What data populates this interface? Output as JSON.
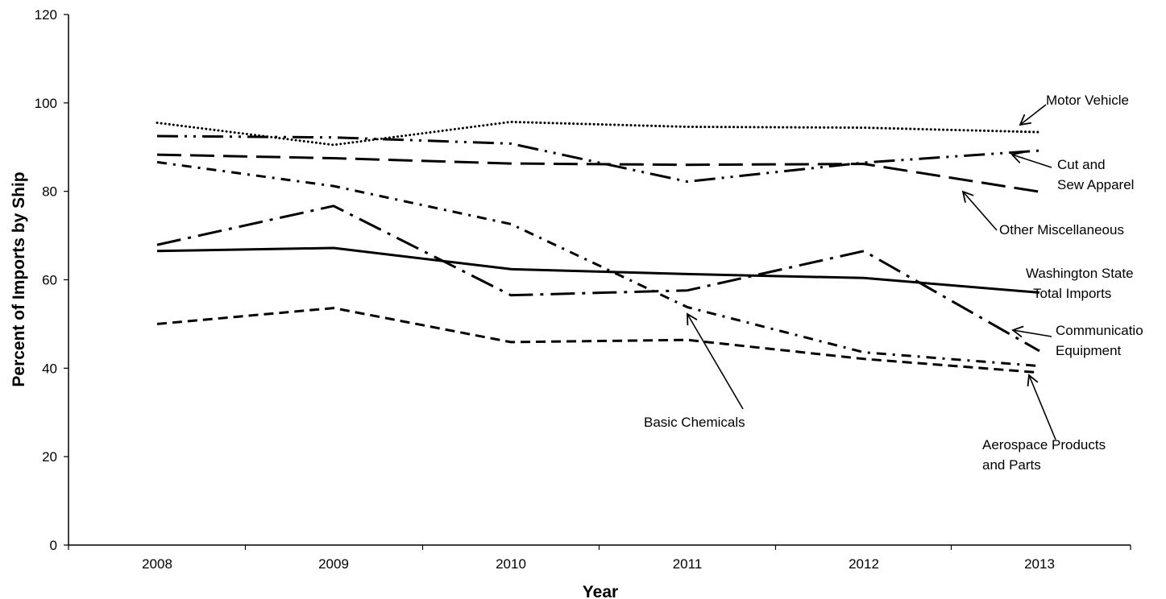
{
  "chart_data": {
    "type": "line",
    "xlabel": "Year",
    "ylabel": "Percent of Imports by Ship",
    "ylim": [
      0,
      120
    ],
    "yticks": [
      "0",
      "20",
      "40",
      "60",
      "80",
      "100",
      "120"
    ],
    "categories": [
      "2008",
      "2009",
      "2010",
      "2011",
      "2012",
      "2013"
    ],
    "grid": false,
    "legend": "none",
    "series": [
      {
        "name": "Motor Vehicle",
        "label_lines": [
          "Motor Vehicle"
        ],
        "style": "dotted",
        "values": [
          95.5,
          90.5,
          95.7,
          94.6,
          94.4,
          93.4
        ]
      },
      {
        "name": "Cut and Sew Apparel",
        "label_lines": [
          "Cut and",
          "Sew Apparel"
        ],
        "style": "dash-dot-dot",
        "values": [
          92.5,
          92.2,
          90.8,
          82.2,
          86.5,
          89.2
        ]
      },
      {
        "name": "Other Miscellaneous",
        "label_lines": [
          "Other Miscellaneous"
        ],
        "style": "long-dash",
        "values": [
          88.3,
          87.5,
          86.3,
          86.0,
          86.2,
          79.9
        ]
      },
      {
        "name": "Washington State Total Imports",
        "label_lines": [
          "Washington State",
          "Total Imports"
        ],
        "style": "solid",
        "values": [
          66.5,
          67.2,
          62.4,
          61.3,
          60.4,
          57.1
        ]
      },
      {
        "name": "Communication Equipment",
        "label_lines": [
          "Communicatio",
          "Equipment"
        ],
        "style": "long-dash-dot",
        "values": [
          67.9,
          76.7,
          56.5,
          57.6,
          66.5,
          43.9
        ]
      },
      {
        "name": "Basic Chemicals",
        "label_lines": [
          "Basic Chemicals"
        ],
        "style": "dash-dot",
        "values": [
          86.6,
          81.2,
          72.6,
          53.8,
          43.6,
          40.5
        ]
      },
      {
        "name": "Aerospace Products and Parts",
        "label_lines": [
          "Aerospace Products",
          "and Parts"
        ],
        "style": "short-dash",
        "values": [
          50.0,
          53.6,
          45.9,
          46.4,
          42.1,
          39.0
        ]
      }
    ]
  }
}
